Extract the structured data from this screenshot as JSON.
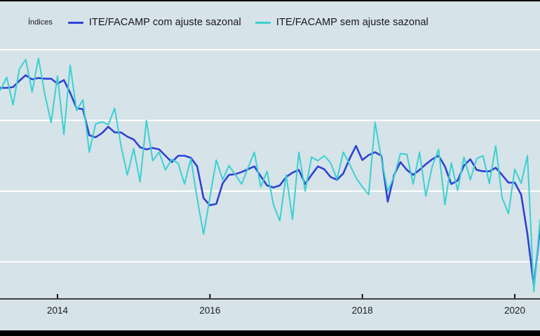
{
  "page": {
    "background": "#d6e3e9",
    "top_bar_color": "#000000",
    "bottom_bar_color": "#000000",
    "gridline_color": "#ffffff",
    "axis_line_color": "#3f3f3f",
    "tick_color": "#111111",
    "tick_label_color": "#1c1c1c"
  },
  "legend": {
    "title": "Índices",
    "items": [
      {
        "label": "ITE/FACAMP com ajuste sazonal",
        "color": "#2e42d4"
      },
      {
        "label": "ITE/FACAMP sem ajuste sazonal",
        "color": "#3ad1d1"
      }
    ]
  },
  "chart_data": {
    "type": "line",
    "title": "",
    "xlabel": "",
    "ylabel": "",
    "x_axis": {
      "tick_labels": [
        "2014",
        "2016",
        "2018",
        "2020"
      ],
      "tick_years": [
        2014,
        2016,
        2018,
        2020
      ]
    },
    "y_axis": {
      "tick_labels_visible": false,
      "gridline_values": [
        110,
        100,
        90,
        80
      ],
      "ylim_estimated": [
        74.5,
        111
      ]
    },
    "x_start_year_decimal": 2013.25,
    "x_step_years": 0.0833333,
    "frequency": "monthly",
    "x_range_estimated": [
      "2013-04",
      "2020-05"
    ],
    "series": [
      {
        "name": "ITE/FACAMP com ajuste sazonal",
        "color": "#2e42d4",
        "stroke_width": 2.6,
        "values": [
          104.6,
          104.6,
          104.7,
          105.6,
          106.4,
          105.8,
          106.0,
          105.9,
          105.9,
          105.2,
          105.7,
          103.9,
          101.7,
          101.6,
          97.9,
          97.6,
          98.2,
          99.1,
          98.3,
          98.3,
          97.7,
          97.3,
          96.2,
          95.9,
          96.1,
          95.9,
          95.0,
          94.1,
          95.0,
          95.0,
          94.7,
          93.5,
          89.0,
          88.0,
          88.2,
          91.1,
          92.3,
          92.4,
          92.7,
          93.1,
          93.5,
          92.1,
          90.8,
          90.5,
          90.8,
          92.0,
          92.6,
          93.0,
          91.0,
          92.3,
          93.5,
          93.1,
          92.0,
          91.6,
          92.5,
          94.6,
          96.4,
          94.4,
          95.1,
          95.5,
          95.0,
          88.5,
          92.3,
          94.1,
          93.0,
          92.3,
          93.0,
          93.8,
          94.5,
          95.0,
          93.5,
          91.0,
          91.5,
          93.6,
          94.5,
          93.0,
          92.8,
          92.8,
          93.3,
          92.3,
          91.2,
          91.2,
          89.5,
          83.9,
          76.6,
          84.9
        ]
      },
      {
        "name": "ITE/FACAMP sem ajuste sazonal",
        "color": "#3ad1d1",
        "stroke_width": 2.0,
        "values": [
          104.3,
          106.1,
          102.2,
          107.3,
          108.6,
          104.0,
          108.8,
          103.7,
          99.7,
          106.3,
          98.0,
          107.8,
          101.4,
          102.9,
          95.5,
          99.5,
          99.8,
          99.4,
          101.7,
          96.4,
          92.3,
          96.0,
          91.3,
          100.0,
          94.3,
          95.5,
          93.0,
          94.5,
          93.9,
          91.0,
          94.6,
          88.9,
          83.9,
          89.1,
          94.4,
          91.6,
          93.6,
          92.3,
          91.0,
          93.3,
          95.5,
          90.6,
          92.8,
          88.1,
          85.8,
          92.3,
          86.0,
          95.5,
          90.0,
          94.8,
          94.3,
          95.0,
          94.0,
          91.7,
          95.5,
          93.8,
          91.9,
          90.6,
          89.5,
          99.7,
          94.6,
          90.0,
          92.1,
          95.3,
          95.2,
          91.0,
          95.5,
          89.3,
          93.5,
          95.9,
          88.1,
          94.0,
          90.1,
          94.8,
          91.6,
          94.6,
          95.0,
          91.1,
          96.4,
          89.1,
          86.8,
          93.1,
          91.1,
          95.0,
          75.8,
          86.0
        ]
      }
    ],
    "legend_position": "top-left",
    "grid": "horizontal-only"
  }
}
